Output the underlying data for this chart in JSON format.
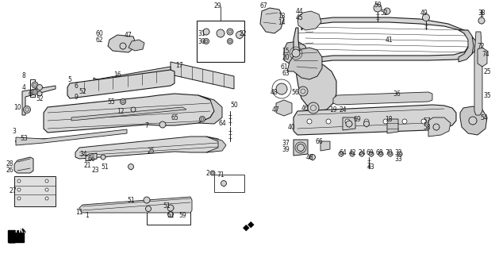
{
  "bg_color": "#ffffff",
  "line_color": "#1a1a1a",
  "fig_width": 6.24,
  "fig_height": 3.2,
  "dpi": 100
}
